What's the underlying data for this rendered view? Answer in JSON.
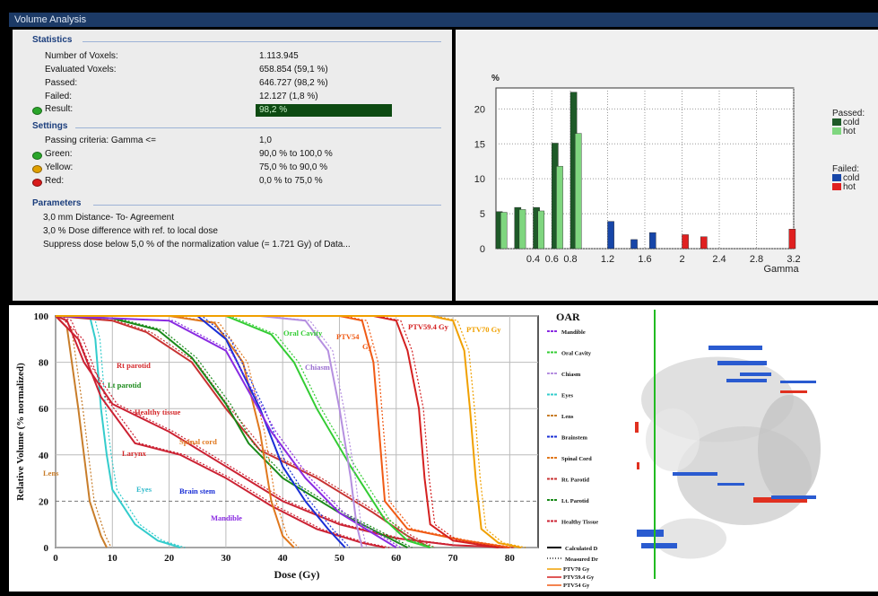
{
  "window": {
    "title": "Volume Analysis"
  },
  "statistics": {
    "header": "Statistics",
    "rows": [
      {
        "label": "Number of Voxels:",
        "value": "1.113.945"
      },
      {
        "label": "Evaluated Voxels:",
        "value": "658.854 (59,1 %)"
      },
      {
        "label": "Passed:",
        "value": "646.727 (98,2 %)"
      },
      {
        "label": "Failed:",
        "value": "12.127 (1,8 %)"
      }
    ],
    "result_label": "Result:",
    "result_value": "98,2 %"
  },
  "settings": {
    "header": "Settings",
    "passing_label": "Passing criteria: Gamma <=",
    "passing_value": "1,0",
    "levels": [
      {
        "label": "Green:",
        "value": "90,0 % to 100,0 %",
        "color": "#2aa52a"
      },
      {
        "label": "Yellow:",
        "value": "75,0 % to 90,0 %",
        "color": "#e0a000"
      },
      {
        "label": "Red:",
        "value": "0,0 % to 75,0 %",
        "color": "#d81b1b"
      }
    ]
  },
  "parameters": {
    "header": "Parameters",
    "lines": [
      "3,0 mm Distance- To- Agreement",
      "3,0 % Dose difference with ref. to local dose",
      "Suppress dose below 5,0 % of the normalization value (= 1.721 Gy) of Data..."
    ]
  },
  "chart_data": [
    {
      "type": "bar",
      "ylabel": "%",
      "xlabel": "Gamma",
      "xlim": [
        0,
        3.2
      ],
      "ylim": [
        0,
        23
      ],
      "xticks": [
        "0.4",
        "0.6",
        "0.8",
        "1.2",
        "1.6",
        "2",
        "2.4",
        "2.8",
        "3.2"
      ],
      "yticks": [
        "0",
        "5",
        "10",
        "15",
        "20"
      ],
      "legend": {
        "passed_title": "Passed:",
        "failed_title": "Failed:",
        "items": [
          {
            "name": "cold",
            "group": "passed",
            "color": "#1e5a28"
          },
          {
            "name": "hot",
            "group": "passed",
            "color": "#7fd67f"
          },
          {
            "name": "cold",
            "group": "failed",
            "color": "#1746a8"
          },
          {
            "name": "hot",
            "group": "failed",
            "color": "#e02020"
          }
        ]
      },
      "bars": [
        {
          "x": 0.0,
          "value": 5.3,
          "kind": "passed-cold"
        },
        {
          "x": 0.05,
          "value": 5.2,
          "kind": "passed-hot"
        },
        {
          "x": 0.2,
          "value": 5.9,
          "kind": "passed-cold"
        },
        {
          "x": 0.25,
          "value": 5.6,
          "kind": "passed-hot"
        },
        {
          "x": 0.4,
          "value": 5.9,
          "kind": "passed-cold"
        },
        {
          "x": 0.45,
          "value": 5.4,
          "kind": "passed-hot"
        },
        {
          "x": 0.6,
          "value": 15.1,
          "kind": "passed-cold"
        },
        {
          "x": 0.65,
          "value": 11.8,
          "kind": "passed-hot"
        },
        {
          "x": 0.8,
          "value": 22.4,
          "kind": "passed-cold"
        },
        {
          "x": 0.85,
          "value": 16.5,
          "kind": "passed-hot"
        },
        {
          "x": 1.2,
          "value": 3.9,
          "kind": "failed-cold"
        },
        {
          "x": 1.45,
          "value": 1.3,
          "kind": "failed-cold"
        },
        {
          "x": 1.65,
          "value": 2.3,
          "kind": "failed-cold"
        },
        {
          "x": 2.0,
          "value": 2.0,
          "kind": "failed-hot"
        },
        {
          "x": 2.2,
          "value": 1.7,
          "kind": "failed-hot"
        },
        {
          "x": 3.15,
          "value": 2.8,
          "kind": "failed-hot"
        }
      ]
    },
    {
      "type": "line",
      "xlabel": "Dose (Gy)",
      "ylabel": "Relative Volume (% normalized)",
      "xlim": [
        0,
        85
      ],
      "ylim": [
        0,
        100
      ],
      "xticks": [
        "0",
        "10",
        "20",
        "30",
        "40",
        "50",
        "60",
        "70",
        "80"
      ],
      "yticks": [
        "0",
        "20",
        "40",
        "60",
        "80",
        "100"
      ],
      "legend_title": "OAR",
      "legend_items": [
        {
          "name": "Mandible",
          "color": "#8a2be2"
        },
        {
          "name": "Oral Cavity",
          "color": "#33cc33"
        },
        {
          "name": "Chiasm",
          "color": "#b58fe0"
        },
        {
          "name": "Eyes",
          "color": "#33cccc"
        },
        {
          "name": "Lens",
          "color": "#c87d2a"
        },
        {
          "name": "Brainstem",
          "color": "#1a2fd6"
        },
        {
          "name": "Spinal Cord",
          "color": "#e0781e"
        },
        {
          "name": "Rt. Parotid",
          "color": "#c83232"
        },
        {
          "name": "Lt. Parotid",
          "color": "#1a8a1a"
        },
        {
          "name": "Healthy Tissue",
          "color": "#cc2233"
        }
      ],
      "style_items": [
        {
          "name": "Calculated D"
        },
        {
          "name": "Measured Dr"
        }
      ],
      "ptv_items": [
        {
          "name": "PTV70 Gy",
          "color": "#f0a000"
        },
        {
          "name": "PTV59.4 Gy",
          "color": "#d42020"
        },
        {
          "name": "PTV54 Gy",
          "color": "#f05a14"
        }
      ],
      "annotations": [
        {
          "text": "Rt parotid",
          "color": "#d4282a"
        },
        {
          "text": "Lt parotid",
          "color": "#1a8a1a"
        },
        {
          "text": "Healthy tissue",
          "color": "#d4282a"
        },
        {
          "text": "Spinal cord",
          "color": "#e0781e"
        },
        {
          "text": "Larynx",
          "color": "#d4282a"
        },
        {
          "text": "Lens",
          "color": "#c87d2a"
        },
        {
          "text": "Eyes",
          "color": "#33bbcc"
        },
        {
          "text": "Brain stem",
          "color": "#1a2fd6"
        },
        {
          "text": "Mandible",
          "color": "#8a2be2"
        },
        {
          "text": "Oral Cavity",
          "color": "#33cc33"
        },
        {
          "text": "Chiasm",
          "color": "#9a6fd0"
        },
        {
          "text": "PTV54",
          "color": "#f05a14"
        },
        {
          "text": "Gy",
          "color": "#f05a14"
        },
        {
          "text": "PTV59.4 Gy",
          "color": "#d42020"
        },
        {
          "text": "PTV70 Gy",
          "color": "#f0a000"
        }
      ],
      "series": [
        {
          "name": "Lens",
          "color": "#c87d2a",
          "points": [
            [
              0,
              100
            ],
            [
              2,
              95
            ],
            [
              4,
              60
            ],
            [
              6,
              20
            ],
            [
              8,
              5
            ],
            [
              9,
              0
            ]
          ]
        },
        {
          "name": "Eyes",
          "color": "#33cccc",
          "points": [
            [
              0,
              100
            ],
            [
              6,
              100
            ],
            [
              7,
              90
            ],
            [
              8,
              60
            ],
            [
              9,
              40
            ],
            [
              10,
              25
            ],
            [
              14,
              10
            ],
            [
              18,
              3
            ],
            [
              22,
              0
            ]
          ]
        },
        {
          "name": "Healthy Tissue",
          "color": "#cc2233",
          "points": [
            [
              0,
              100
            ],
            [
              2,
              98
            ],
            [
              5,
              80
            ],
            [
              10,
              62
            ],
            [
              20,
              50
            ],
            [
              30,
              35
            ],
            [
              40,
              20
            ],
            [
              50,
              10
            ],
            [
              60,
              4
            ],
            [
              70,
              1
            ],
            [
              80,
              0
            ]
          ]
        },
        {
          "name": "Larynx",
          "color": "#cc2233",
          "points": [
            [
              0,
              100
            ],
            [
              4,
              90
            ],
            [
              8,
              65
            ],
            [
              14,
              45
            ],
            [
              22,
              40
            ],
            [
              30,
              30
            ],
            [
              38,
              18
            ],
            [
              46,
              8
            ],
            [
              54,
              2
            ],
            [
              58,
              0
            ]
          ]
        },
        {
          "name": "Rt. Parotid",
          "color": "#c83232",
          "points": [
            [
              0,
              100
            ],
            [
              10,
              98
            ],
            [
              16,
              93
            ],
            [
              24,
              80
            ],
            [
              30,
              60
            ],
            [
              36,
              42
            ],
            [
              46,
              30
            ],
            [
              56,
              15
            ],
            [
              62,
              5
            ],
            [
              66,
              0
            ]
          ]
        },
        {
          "name": "Lt. Parotid",
          "color": "#1a8a1a",
          "points": [
            [
              0,
              100
            ],
            [
              10,
              99
            ],
            [
              18,
              94
            ],
            [
              24,
              82
            ],
            [
              30,
              62
            ],
            [
              34,
              45
            ],
            [
              40,
              30
            ],
            [
              50,
              15
            ],
            [
              58,
              5
            ],
            [
              62,
              0
            ]
          ]
        },
        {
          "name": "Spinal Cord",
          "color": "#e0781e",
          "points": [
            [
              0,
              100
            ],
            [
              20,
              100
            ],
            [
              28,
              97
            ],
            [
              33,
              80
            ],
            [
              36,
              50
            ],
            [
              38,
              20
            ],
            [
              40,
              5
            ],
            [
              42,
              0
            ]
          ]
        },
        {
          "name": "Brainstem",
          "color": "#1a2fd6",
          "points": [
            [
              0,
              100
            ],
            [
              25,
              100
            ],
            [
              30,
              90
            ],
            [
              36,
              60
            ],
            [
              40,
              35
            ],
            [
              44,
              20
            ],
            [
              48,
              8
            ],
            [
              51,
              0
            ]
          ]
        },
        {
          "name": "Mandible",
          "color": "#8a2be2",
          "points": [
            [
              0,
              100
            ],
            [
              20,
              98
            ],
            [
              30,
              85
            ],
            [
              38,
              50
            ],
            [
              44,
              30
            ],
            [
              50,
              15
            ],
            [
              56,
              6
            ],
            [
              60,
              0
            ]
          ]
        },
        {
          "name": "Oral Cavity",
          "color": "#33cc33",
          "points": [
            [
              0,
              100
            ],
            [
              30,
              100
            ],
            [
              38,
              92
            ],
            [
              42,
              80
            ],
            [
              46,
              60
            ],
            [
              52,
              35
            ],
            [
              58,
              12
            ],
            [
              62,
              3
            ],
            [
              66,
              0
            ]
          ]
        },
        {
          "name": "Chiasm",
          "color": "#b58fe0",
          "points": [
            [
              0,
              100
            ],
            [
              36,
              100
            ],
            [
              44,
              98
            ],
            [
              48,
              85
            ],
            [
              50,
              60
            ],
            [
              52,
              30
            ],
            [
              53,
              10
            ],
            [
              54,
              0
            ]
          ]
        },
        {
          "name": "PTV54",
          "color": "#f05a14",
          "points": [
            [
              0,
              100
            ],
            [
              50,
              100
            ],
            [
              54,
              98
            ],
            [
              56,
              80
            ],
            [
              57,
              50
            ],
            [
              58,
              20
            ],
            [
              62,
              8
            ],
            [
              72,
              3
            ],
            [
              80,
              0
            ]
          ]
        },
        {
          "name": "PTV59.4",
          "color": "#d42020",
          "points": [
            [
              0,
              100
            ],
            [
              56,
              100
            ],
            [
              60,
              98
            ],
            [
              62,
              85
            ],
            [
              64,
              60
            ],
            [
              65,
              30
            ],
            [
              66,
              10
            ],
            [
              70,
              3
            ],
            [
              78,
              0
            ]
          ]
        },
        {
          "name": "PTV70",
          "color": "#f0a000",
          "points": [
            [
              0,
              100
            ],
            [
              66,
              100
            ],
            [
              70,
              98
            ],
            [
              72,
              85
            ],
            [
              73,
              60
            ],
            [
              74,
              30
            ],
            [
              75,
              8
            ],
            [
              78,
              2
            ],
            [
              82,
              0
            ]
          ]
        }
      ]
    }
  ]
}
